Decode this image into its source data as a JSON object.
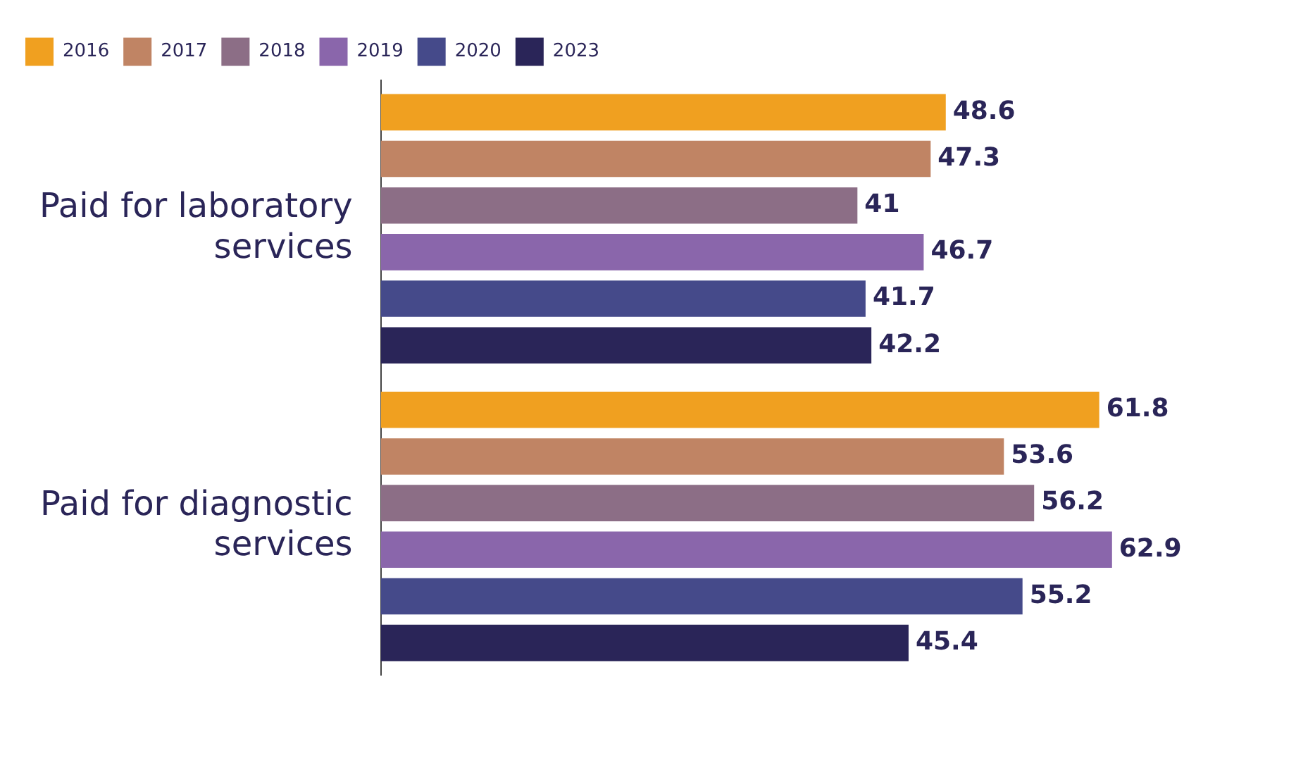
{
  "chart_data": {
    "type": "bar",
    "orientation": "horizontal",
    "categories": [
      "Paid for laboratory services",
      "Paid for diagnostic services"
    ],
    "series": [
      {
        "name": "2016",
        "color": "#f0a020",
        "values": [
          48.6,
          61.8
        ]
      },
      {
        "name": "2017",
        "color": "#c08464",
        "values": [
          47.3,
          53.6
        ]
      },
      {
        "name": "2018",
        "color": "#8c6e86",
        "values": [
          41,
          56.2
        ]
      },
      {
        "name": "2019",
        "color": "#8a66ab",
        "values": [
          46.7,
          62.9
        ]
      },
      {
        "name": "2020",
        "color": "#454a8a",
        "values": [
          41.7,
          55.2
        ]
      },
      {
        "name": "2023",
        "color": "#2a2558",
        "values": [
          42.2,
          45.4
        ]
      }
    ],
    "data_labels": true,
    "legend": "top",
    "grid": false
  }
}
